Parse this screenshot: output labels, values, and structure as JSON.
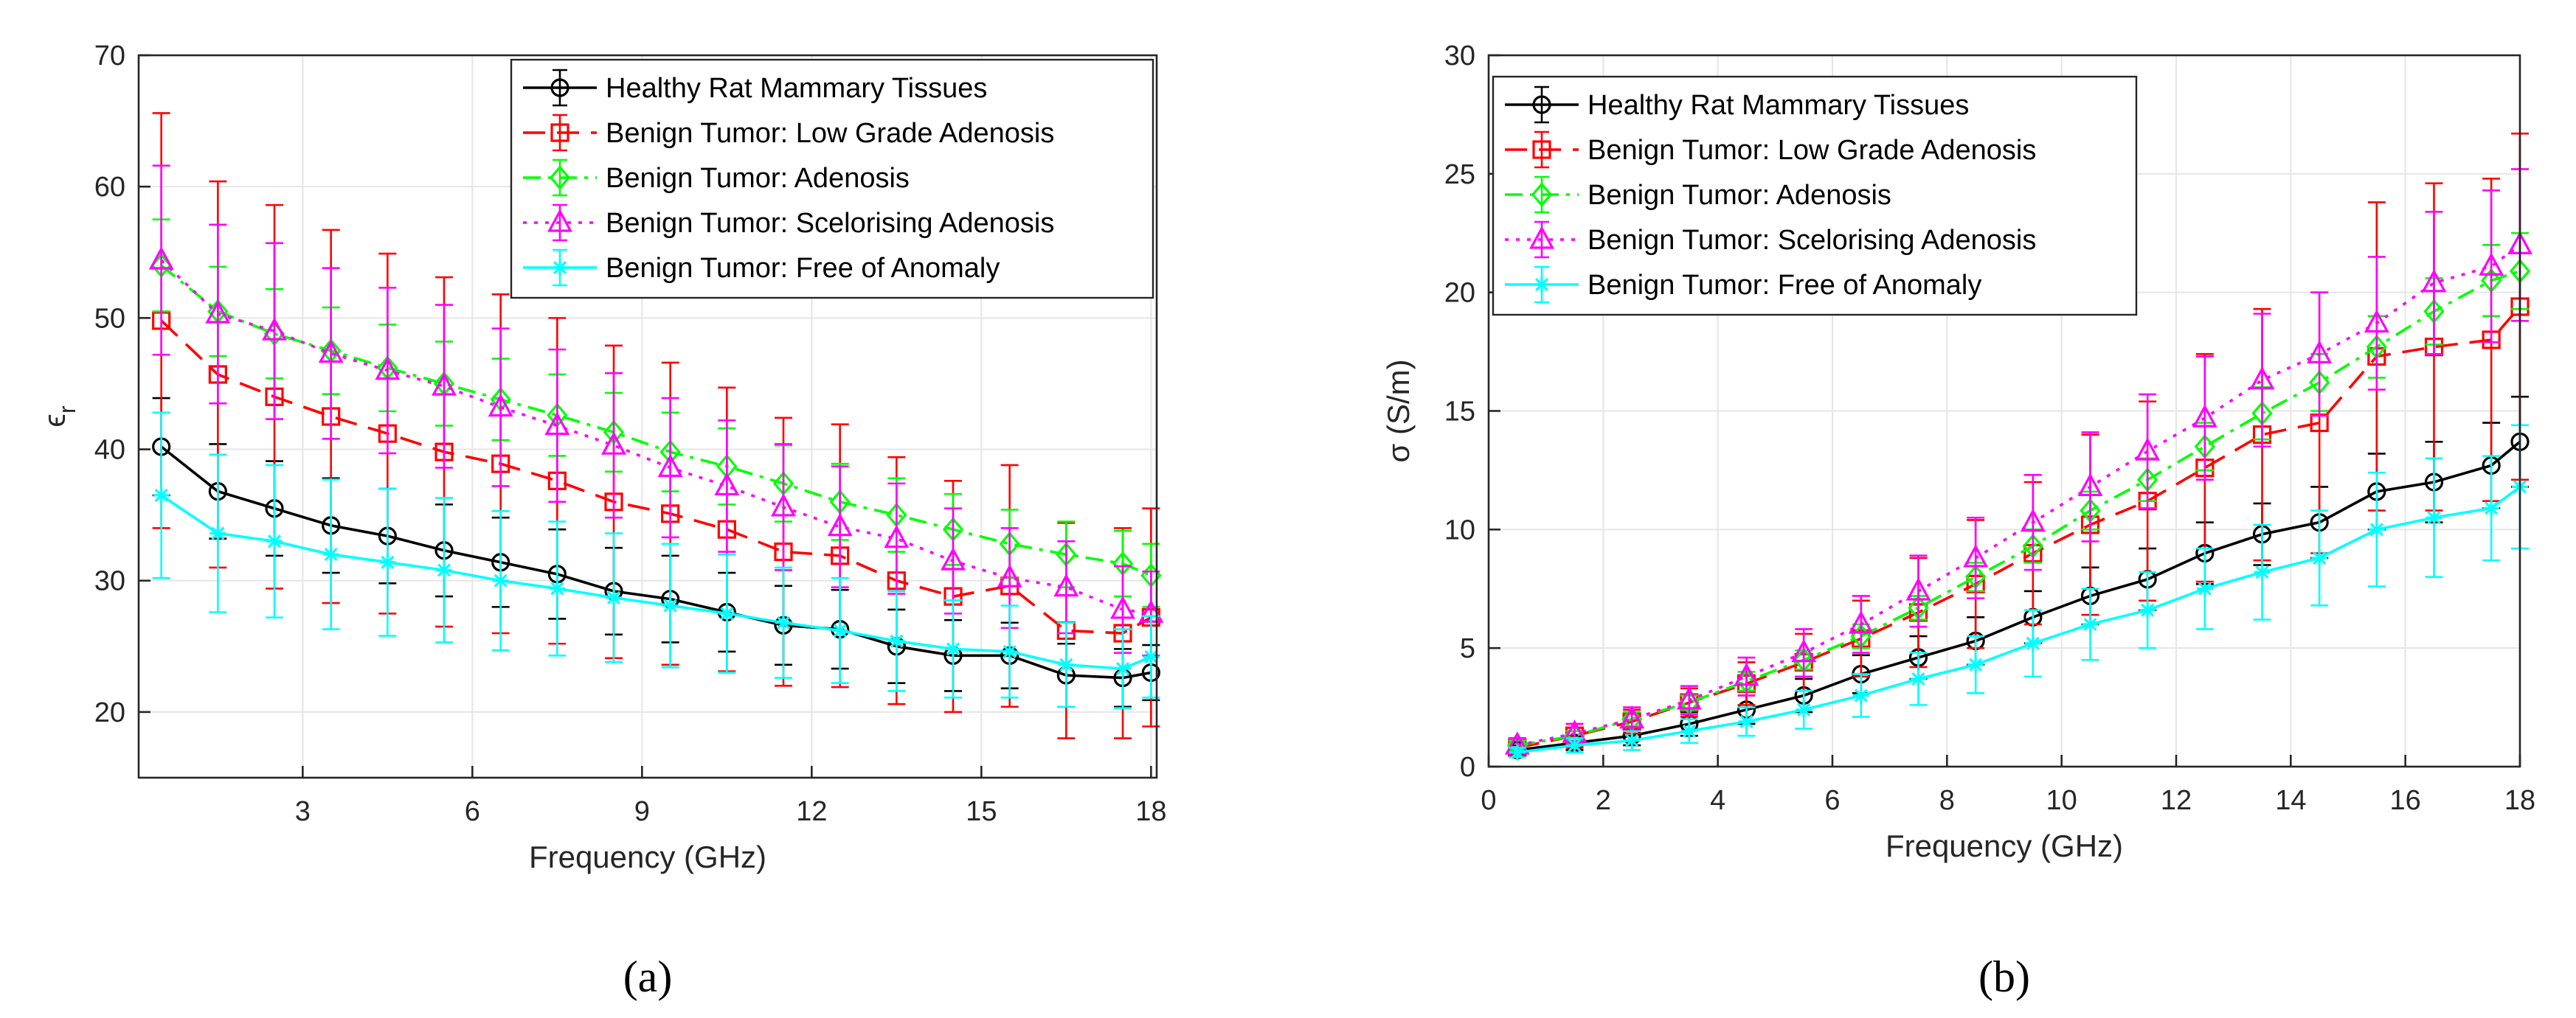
{
  "chart_data": [
    {
      "type": "line",
      "panel": "(a)",
      "xlabel": "Frequency (GHz)",
      "ylabel": "ϵ",
      "ylabel_sub": "r",
      "xlim": [
        0.1,
        18.1
      ],
      "ylim": [
        15,
        70
      ],
      "xticks": [
        3,
        6,
        9,
        12,
        15,
        18
      ],
      "yticks": [
        20,
        30,
        40,
        50,
        60,
        70
      ],
      "grid": true,
      "legend_position": "top-right",
      "x": [
        0.5,
        1.5,
        2.5,
        3.5,
        4.5,
        5.5,
        6.5,
        7.5,
        8.5,
        9.5,
        10.5,
        11.5,
        12.5,
        13.5,
        14.5,
        15.5,
        16.5,
        17.5,
        18
      ],
      "series": [
        {
          "name": "Healthy Rat Mammary Tissues",
          "color": "#000000",
          "dash": "",
          "marker": "circle",
          "values": [
            40.2,
            36.8,
            35.5,
            34.2,
            33.4,
            32.3,
            31.4,
            30.5,
            29.2,
            28.6,
            27.6,
            26.6,
            26.3,
            25.0,
            24.3,
            24.3,
            22.8,
            22.6,
            23.0
          ],
          "errors": [
            3.7,
            3.6,
            3.6,
            3.6,
            3.6,
            3.5,
            3.4,
            3.4,
            3.3,
            3.3,
            3.0,
            3.0,
            3.0,
            2.8,
            2.7,
            2.5,
            2.4,
            2.2,
            2.1
          ]
        },
        {
          "name": "Benign Tumor: Low Grade Adenosis",
          "color": "#ff0000",
          "dash": "30,16",
          "marker": "square",
          "values": [
            49.8,
            45.7,
            44.0,
            42.5,
            41.2,
            39.8,
            38.9,
            37.6,
            36.0,
            35.1,
            33.9,
            32.2,
            31.9,
            30.0,
            28.8,
            29.6,
            26.2,
            26.0,
            27.2
          ],
          "errors": [
            15.8,
            14.7,
            14.6,
            14.2,
            13.7,
            13.3,
            12.9,
            12.4,
            11.9,
            11.5,
            10.8,
            10.2,
            10.0,
            9.4,
            8.8,
            9.2,
            8.2,
            8.0,
            8.3
          ]
        },
        {
          "name": "Benign Tumor: Adenosis",
          "color": "#00ff00",
          "dash": "24,10,5,10",
          "marker": "diamond",
          "values": [
            54.0,
            50.5,
            48.8,
            47.5,
            46.2,
            45.0,
            43.8,
            42.6,
            41.3,
            39.8,
            38.7,
            37.4,
            36.0,
            35.0,
            33.9,
            32.8,
            32.0,
            31.3,
            30.4
          ],
          "errors": [
            3.5,
            3.4,
            3.4,
            3.3,
            3.3,
            3.2,
            3.1,
            3.1,
            3.0,
            3.0,
            2.9,
            2.9,
            2.9,
            2.8,
            2.7,
            2.6,
            2.5,
            2.5,
            2.4
          ]
        },
        {
          "name": "Benign Tumor: Scelorising Adenosis",
          "color": "#ff00ff",
          "dash": "5,10",
          "marker": "triangle",
          "values": [
            54.4,
            50.3,
            49.0,
            47.3,
            46.0,
            44.8,
            43.2,
            41.8,
            40.3,
            38.6,
            37.2,
            35.6,
            34.1,
            33.2,
            31.5,
            30.2,
            29.5,
            27.8,
            27.5
          ],
          "errors": [
            7.2,
            6.8,
            6.7,
            6.5,
            6.3,
            6.2,
            6.0,
            5.8,
            5.5,
            5.3,
            5.0,
            4.8,
            4.6,
            4.2,
            4.0,
            3.8,
            3.5,
            3.3,
            3.2
          ]
        },
        {
          "name": "Benign Tumor: Free of Anomaly",
          "color": "#00ffff",
          "dash": "",
          "marker": "asterisk",
          "values": [
            36.5,
            33.6,
            33.0,
            32.0,
            31.4,
            30.8,
            30.0,
            29.4,
            28.7,
            28.1,
            27.5,
            26.8,
            26.2,
            25.4,
            24.8,
            24.6,
            23.6,
            23.3,
            24.2
          ],
          "errors": [
            6.3,
            6.0,
            5.8,
            5.7,
            5.6,
            5.5,
            5.3,
            5.1,
            4.9,
            4.7,
            4.5,
            4.2,
            4.0,
            3.8,
            3.7,
            3.5,
            3.2,
            3.0,
            3.1
          ]
        }
      ]
    },
    {
      "type": "line",
      "panel": "(b)",
      "xlabel": "Frequency (GHz)",
      "ylabel": "σ (S/m)",
      "xlim": [
        0,
        18
      ],
      "ylim": [
        0,
        30
      ],
      "xticks": [
        0,
        2,
        4,
        6,
        8,
        10,
        12,
        14,
        16,
        18
      ],
      "yticks": [
        0,
        5,
        10,
        15,
        20,
        25,
        30
      ],
      "grid": true,
      "legend_position": "top-left",
      "x": [
        0.5,
        1.5,
        2.5,
        3.5,
        4.5,
        5.5,
        6.5,
        7.5,
        8.5,
        9.5,
        10.5,
        11.5,
        12.5,
        13.5,
        14.5,
        15.5,
        16.5,
        17.5,
        18
      ],
      "series": [
        {
          "name": "Healthy Rat Mammary Tissues",
          "color": "#000000",
          "dash": "",
          "marker": "circle",
          "values": [
            0.7,
            1.0,
            1.3,
            1.8,
            2.4,
            3.0,
            3.9,
            4.6,
            5.3,
            6.3,
            7.2,
            7.9,
            9.0,
            9.8,
            10.3,
            11.6,
            12.0,
            12.7,
            13.7
          ],
          "errors": [
            0.2,
            0.3,
            0.4,
            0.5,
            0.6,
            0.7,
            0.8,
            0.9,
            1.0,
            1.1,
            1.2,
            1.3,
            1.3,
            1.3,
            1.5,
            1.6,
            1.7,
            1.8,
            1.9
          ]
        },
        {
          "name": "Benign Tumor: Low Grade Adenosis",
          "color": "#ff0000",
          "dash": "30,16",
          "marker": "square",
          "values": [
            0.8,
            1.3,
            1.9,
            2.7,
            3.5,
            4.4,
            5.4,
            6.5,
            7.7,
            9.0,
            10.2,
            11.2,
            12.6,
            14.0,
            14.5,
            17.3,
            17.7,
            18.0,
            19.4
          ],
          "errors": [
            0.4,
            0.5,
            0.5,
            0.6,
            0.9,
            1.2,
            1.6,
            2.3,
            2.7,
            3.0,
            3.8,
            4.2,
            4.8,
            5.3,
            5.5,
            6.5,
            6.9,
            6.8,
            7.3
          ]
        },
        {
          "name": "Benign Tumor: Adenosis",
          "color": "#00ff00",
          "dash": "24,10,5,10",
          "marker": "diamond",
          "values": [
            0.9,
            1.3,
            2.0,
            2.7,
            3.6,
            4.5,
            5.5,
            6.7,
            8.0,
            9.3,
            10.8,
            12.1,
            13.5,
            14.9,
            16.2,
            17.7,
            19.2,
            20.5,
            20.9
          ],
          "errors": [
            0.2,
            0.2,
            0.3,
            0.3,
            0.4,
            0.4,
            0.5,
            0.5,
            0.6,
            0.7,
            0.8,
            0.9,
            1.0,
            1.1,
            1.2,
            1.3,
            1.4,
            1.5,
            1.6
          ]
        },
        {
          "name": "Benign Tumor: Scelorising Adenosis",
          "color": "#ff00ff",
          "dash": "5,10",
          "marker": "triangle",
          "values": [
            0.9,
            1.4,
            2.0,
            2.8,
            3.8,
            4.8,
            6.0,
            7.4,
            8.8,
            10.3,
            11.8,
            13.3,
            14.7,
            16.3,
            17.4,
            18.7,
            20.4,
            21.1,
            22.0
          ],
          "errors": [
            0.3,
            0.4,
            0.5,
            0.6,
            0.8,
            1.0,
            1.2,
            1.5,
            1.7,
            2.0,
            2.3,
            2.4,
            2.6,
            2.8,
            2.6,
            2.8,
            3.0,
            3.2,
            3.2
          ]
        },
        {
          "name": "Benign Tumor: Free of Anomaly",
          "color": "#00ffff",
          "dash": "",
          "marker": "asterisk",
          "values": [
            0.6,
            0.9,
            1.1,
            1.5,
            1.9,
            2.4,
            3.0,
            3.7,
            4.3,
            5.2,
            6.0,
            6.6,
            7.5,
            8.2,
            8.8,
            10.0,
            10.5,
            10.9,
            11.8
          ],
          "errors": [
            0.2,
            0.3,
            0.4,
            0.5,
            0.6,
            0.8,
            0.9,
            1.1,
            1.2,
            1.4,
            1.5,
            1.6,
            1.7,
            2.0,
            2.0,
            2.4,
            2.5,
            2.2,
            2.6
          ]
        }
      ]
    }
  ]
}
